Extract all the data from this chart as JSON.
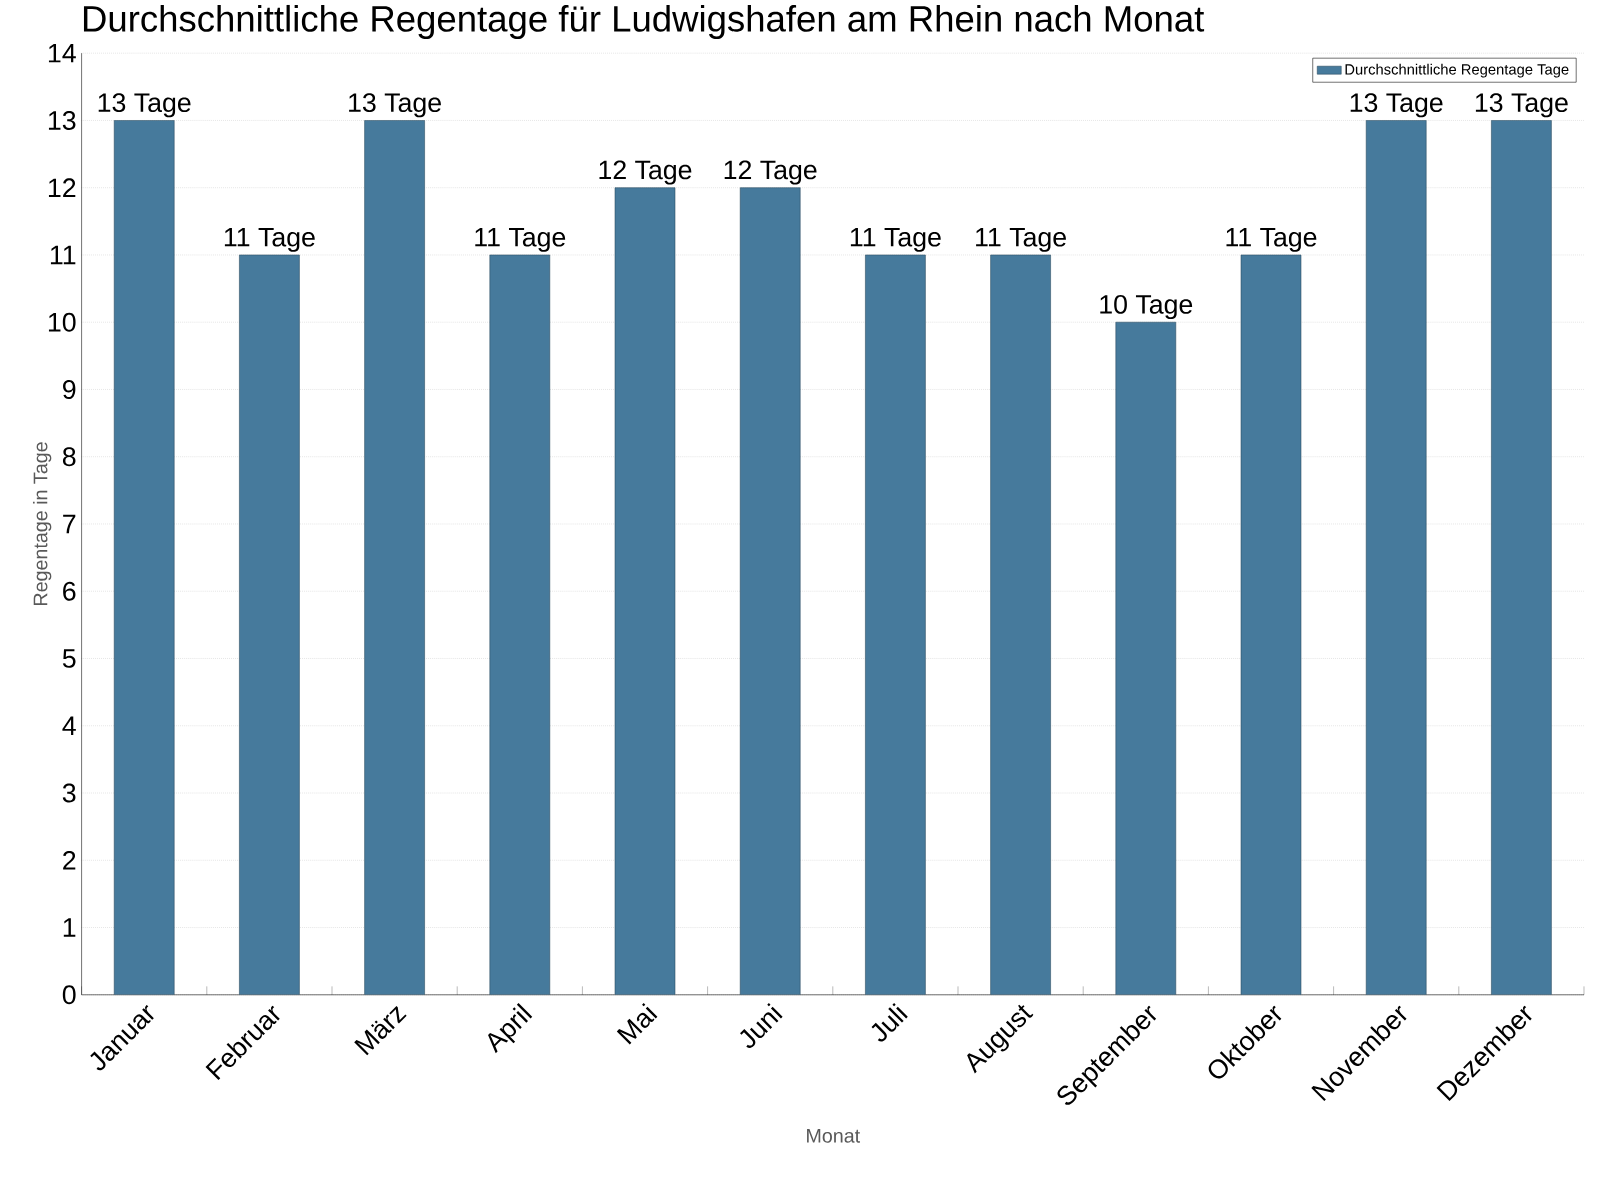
{
  "chart_data": {
    "type": "bar",
    "title": "Durchschnittliche Regentage für Ludwigshafen am Rhein nach Monat",
    "xlabel": "Monat",
    "ylabel": "Regentage in Tage",
    "categories": [
      "Januar",
      "Februar",
      "März",
      "April",
      "Mai",
      "Juni",
      "Juli",
      "August",
      "September",
      "Oktober",
      "November",
      "Dezember"
    ],
    "series": [
      {
        "name": "Durchschnittliche Regentage Tage",
        "color": "#467a9c",
        "values": [
          13,
          11,
          13,
          11,
          12,
          12,
          11,
          11,
          10,
          11,
          13,
          13
        ],
        "value_labels": [
          "13 Tage",
          "11 Tage",
          "13 Tage",
          "11 Tage",
          "12 Tage",
          "12 Tage",
          "11 Tage",
          "11 Tage",
          "10 Tage",
          "11 Tage",
          "13 Tage",
          "13 Tage"
        ]
      }
    ],
    "ylim": [
      0,
      14
    ],
    "yticks": [
      0,
      1,
      2,
      3,
      4,
      5,
      6,
      7,
      8,
      9,
      10,
      11,
      12,
      13,
      14
    ],
    "grid": "y",
    "legend": "top right"
  }
}
